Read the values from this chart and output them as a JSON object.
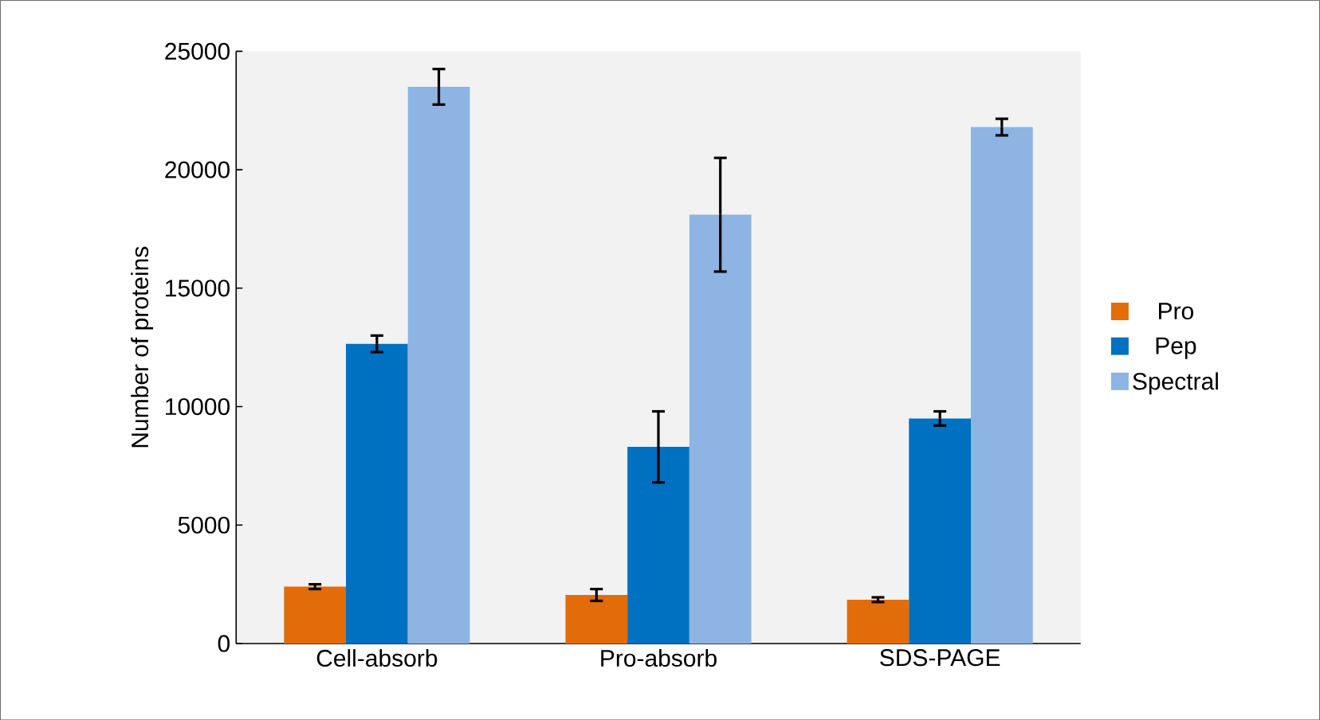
{
  "chart_data": {
    "type": "bar",
    "ylabel": "Number of proteins",
    "categories": [
      "Cell-absorb",
      "Pro-absorb",
      "SDS-PAGE"
    ],
    "series": [
      {
        "name": "Pro",
        "color": "#e36c0a",
        "values": [
          2400,
          2050,
          1850
        ],
        "errors": [
          100,
          250,
          100
        ]
      },
      {
        "name": "Pep",
        "color": "#0070c0",
        "values": [
          12650,
          8300,
          9500
        ],
        "errors": [
          350,
          1500,
          300
        ]
      },
      {
        "name": "Spectral",
        "color": "#8db4e2",
        "values": [
          23500,
          18100,
          21800
        ],
        "errors": [
          750,
          2400,
          350
        ]
      }
    ],
    "ylim": [
      0,
      25000
    ],
    "yticks": [
      0,
      5000,
      10000,
      15000,
      20000,
      25000
    ],
    "grid": false,
    "legend": "right"
  }
}
